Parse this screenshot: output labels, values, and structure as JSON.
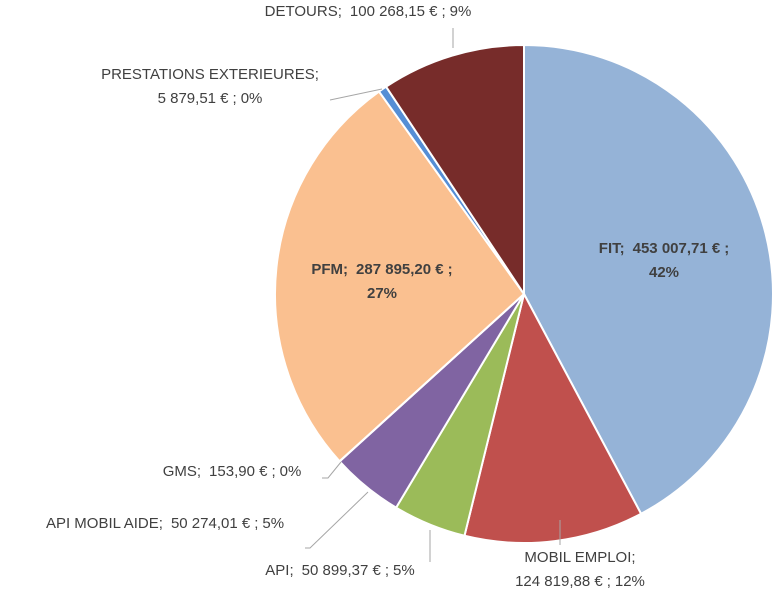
{
  "chart_data": {
    "type": "pie",
    "categories": [
      "FIT",
      "MOBIL EMPLOI",
      "API",
      "API MOBIL AIDE",
      "GMS",
      "PFM",
      "PRESTATIONS EXTERIEURES",
      "DETOURS"
    ],
    "values": [
      453007.71,
      124819.88,
      50899.37,
      50274.01,
      153.9,
      287895.2,
      5879.51,
      100268.15
    ],
    "value_labels": [
      "453 007,71 €",
      "124 819,88 €",
      "50 899,37 €",
      "50 274,01 €",
      "153,90 €",
      "287 895,20 €",
      "5 879,51 €",
      "100 268,15 €"
    ],
    "percents": [
      42,
      12,
      5,
      5,
      0,
      27,
      0,
      9
    ],
    "percent_labels": [
      "42%",
      "12%",
      "5%",
      "5%",
      "0%",
      "27%",
      "0%",
      "9%"
    ],
    "separator": ";",
    "colors": [
      "#95b3d7",
      "#c0504d",
      "#9bbb59",
      "#8064a2",
      "#4bacc6",
      "#fac090",
      "#558ed5",
      "#772c2a"
    ]
  }
}
